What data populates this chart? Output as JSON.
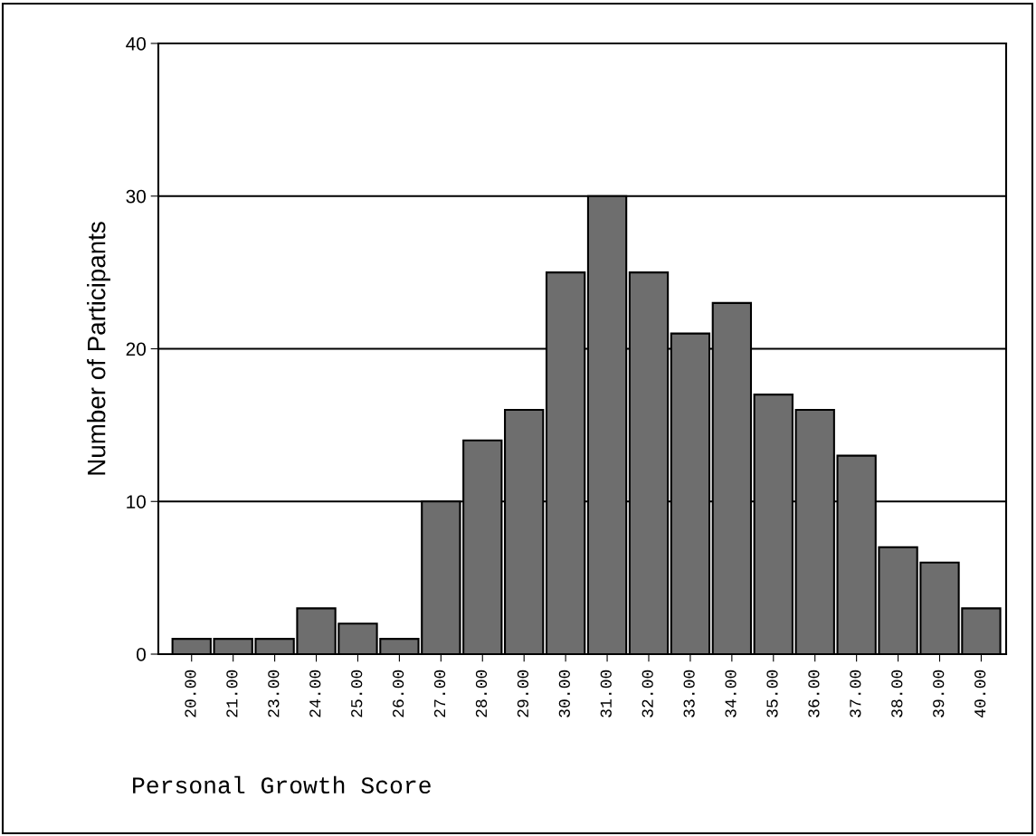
{
  "chart_data": {
    "type": "bar",
    "xlabel": "Personal Growth Score",
    "ylabel": "Number of Participants",
    "categories": [
      "20.00",
      "21.00",
      "23.00",
      "24.00",
      "25.00",
      "26.00",
      "27.00",
      "28.00",
      "29.00",
      "30.00",
      "31.00",
      "32.00",
      "33.00",
      "34.00",
      "35.00",
      "36.00",
      "37.00",
      "38.00",
      "39.00",
      "40.00"
    ],
    "values": [
      1,
      1,
      1,
      3,
      2,
      1,
      10,
      14,
      16,
      25,
      30,
      25,
      21,
      23,
      17,
      16,
      13,
      7,
      6,
      3
    ],
    "color": "#6e6e6e",
    "ylim": [
      0,
      40
    ],
    "yticks": [
      0,
      10,
      20,
      30,
      40
    ],
    "grid": "y"
  }
}
